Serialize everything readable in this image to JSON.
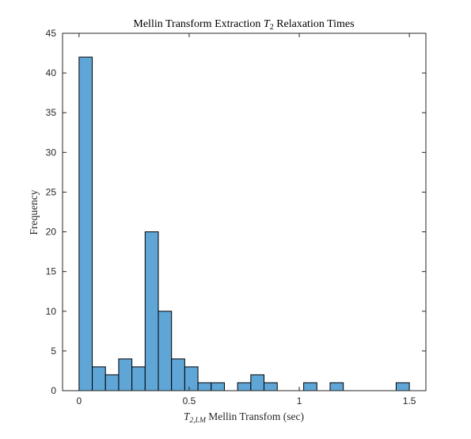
{
  "chart_data": {
    "type": "bar",
    "title": {
      "main_before": "Mellin Transform Extraction ",
      "t_symbol": "T",
      "t_subscript": "2",
      "main_after": " Relaxation Times"
    },
    "xlabel": {
      "t_symbol": "T",
      "t_subscript": "2,LM",
      "text": " Mellin Transfom (sec)"
    },
    "ylabel": "Frequency",
    "xlim": [
      -0.075,
      1.575
    ],
    "ylim": [
      0,
      45
    ],
    "xticks": [
      0,
      0.5,
      1,
      1.5
    ],
    "xtick_labels": [
      "0",
      "0.5",
      "1",
      "1.5"
    ],
    "yticks": [
      0,
      5,
      10,
      15,
      20,
      25,
      30,
      35,
      40,
      45
    ],
    "ytick_labels": [
      "0",
      "5",
      "10",
      "15",
      "20",
      "25",
      "30",
      "35",
      "40",
      "45"
    ],
    "bin_width": 0.06,
    "bin_edges_start": 0,
    "values": [
      42,
      3,
      2,
      4,
      3,
      20,
      10,
      4,
      3,
      1,
      1,
      0,
      1,
      2,
      1,
      0,
      0,
      1,
      0,
      1,
      0,
      0,
      0,
      0,
      1
    ],
    "bar_color": "#5fa5d6",
    "edge_color": "#000000",
    "grid": false,
    "box": true
  }
}
